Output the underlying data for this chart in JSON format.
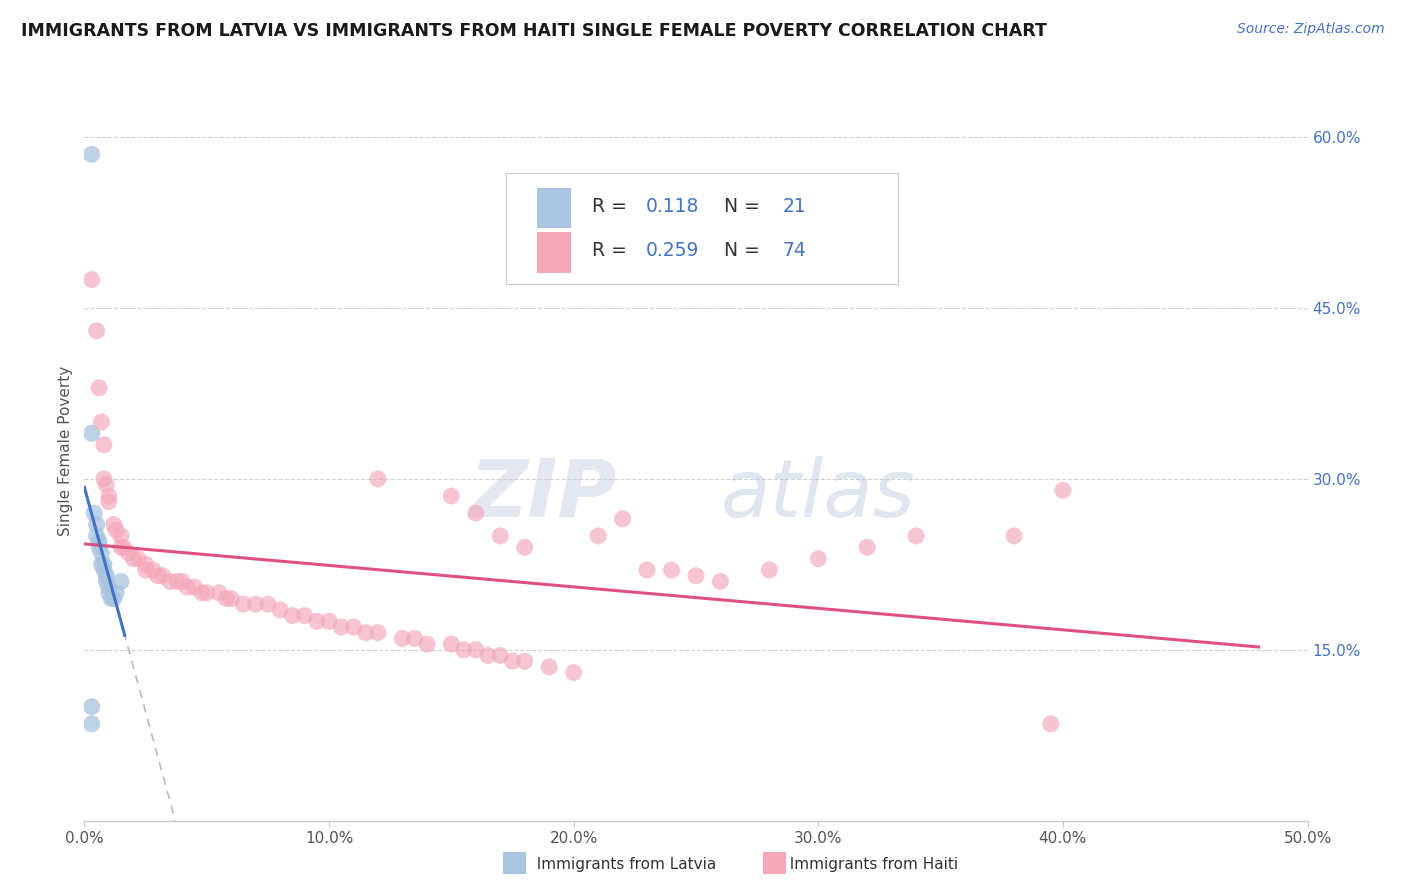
{
  "title": "IMMIGRANTS FROM LATVIA VS IMMIGRANTS FROM HAITI SINGLE FEMALE POVERTY CORRELATION CHART",
  "source": "Source: ZipAtlas.com",
  "ylabel_label": "Single Female Poverty",
  "xlim": [
    0.0,
    0.5
  ],
  "ylim": [
    0.0,
    0.65
  ],
  "x_ticks": [
    0.0,
    0.1,
    0.2,
    0.3,
    0.4,
    0.5
  ],
  "x_tick_labels": [
    "0.0%",
    "10.0%",
    "20.0%",
    "30.0%",
    "40.0%",
    "50.0%"
  ],
  "y_ticks_right": [
    0.15,
    0.3,
    0.45,
    0.6
  ],
  "y_tick_labels_right": [
    "15.0%",
    "30.0%",
    "45.0%",
    "60.0%"
  ],
  "color_latvia": "#a8c4e0",
  "color_haiti": "#f4a7b9",
  "line_color_latvia": "#4472c4",
  "line_color_haiti": "#e05080",
  "trendline_color": "#aaaaaa",
  "background_color": "#ffffff",
  "grid_color": "#d0d0d0",
  "legend_r_latvia": "0.118",
  "legend_n_latvia": "21",
  "legend_r_haiti": "0.259",
  "legend_n_haiti": "74",
  "latvia_x": [
    0.003,
    0.003,
    0.004,
    0.005,
    0.005,
    0.006,
    0.006,
    0.007,
    0.007,
    0.008,
    0.008,
    0.009,
    0.009,
    0.01,
    0.01,
    0.011,
    0.012,
    0.013,
    0.015,
    0.003,
    0.003
  ],
  "latvia_y": [
    0.585,
    0.34,
    0.27,
    0.26,
    0.25,
    0.245,
    0.24,
    0.235,
    0.225,
    0.225,
    0.22,
    0.215,
    0.21,
    0.205,
    0.2,
    0.195,
    0.195,
    0.2,
    0.21,
    0.1,
    0.085
  ],
  "haiti_x": [
    0.003,
    0.005,
    0.006,
    0.007,
    0.008,
    0.008,
    0.009,
    0.01,
    0.01,
    0.012,
    0.013,
    0.015,
    0.015,
    0.016,
    0.018,
    0.02,
    0.022,
    0.025,
    0.025,
    0.028,
    0.03,
    0.032,
    0.035,
    0.038,
    0.04,
    0.042,
    0.045,
    0.048,
    0.05,
    0.055,
    0.058,
    0.06,
    0.065,
    0.07,
    0.075,
    0.08,
    0.085,
    0.09,
    0.095,
    0.1,
    0.105,
    0.11,
    0.115,
    0.12,
    0.13,
    0.135,
    0.14,
    0.15,
    0.155,
    0.16,
    0.165,
    0.17,
    0.175,
    0.18,
    0.19,
    0.2,
    0.21,
    0.22,
    0.23,
    0.24,
    0.25,
    0.26,
    0.28,
    0.3,
    0.32,
    0.34,
    0.38,
    0.395,
    0.4,
    0.12,
    0.15,
    0.16,
    0.17,
    0.18
  ],
  "haiti_y": [
    0.475,
    0.43,
    0.38,
    0.35,
    0.33,
    0.3,
    0.295,
    0.285,
    0.28,
    0.26,
    0.255,
    0.25,
    0.24,
    0.24,
    0.235,
    0.23,
    0.23,
    0.225,
    0.22,
    0.22,
    0.215,
    0.215,
    0.21,
    0.21,
    0.21,
    0.205,
    0.205,
    0.2,
    0.2,
    0.2,
    0.195,
    0.195,
    0.19,
    0.19,
    0.19,
    0.185,
    0.18,
    0.18,
    0.175,
    0.175,
    0.17,
    0.17,
    0.165,
    0.165,
    0.16,
    0.16,
    0.155,
    0.155,
    0.15,
    0.15,
    0.145,
    0.145,
    0.14,
    0.14,
    0.135,
    0.13,
    0.25,
    0.265,
    0.22,
    0.22,
    0.215,
    0.21,
    0.22,
    0.23,
    0.24,
    0.25,
    0.25,
    0.085,
    0.29,
    0.3,
    0.285,
    0.27,
    0.25,
    0.24
  ]
}
